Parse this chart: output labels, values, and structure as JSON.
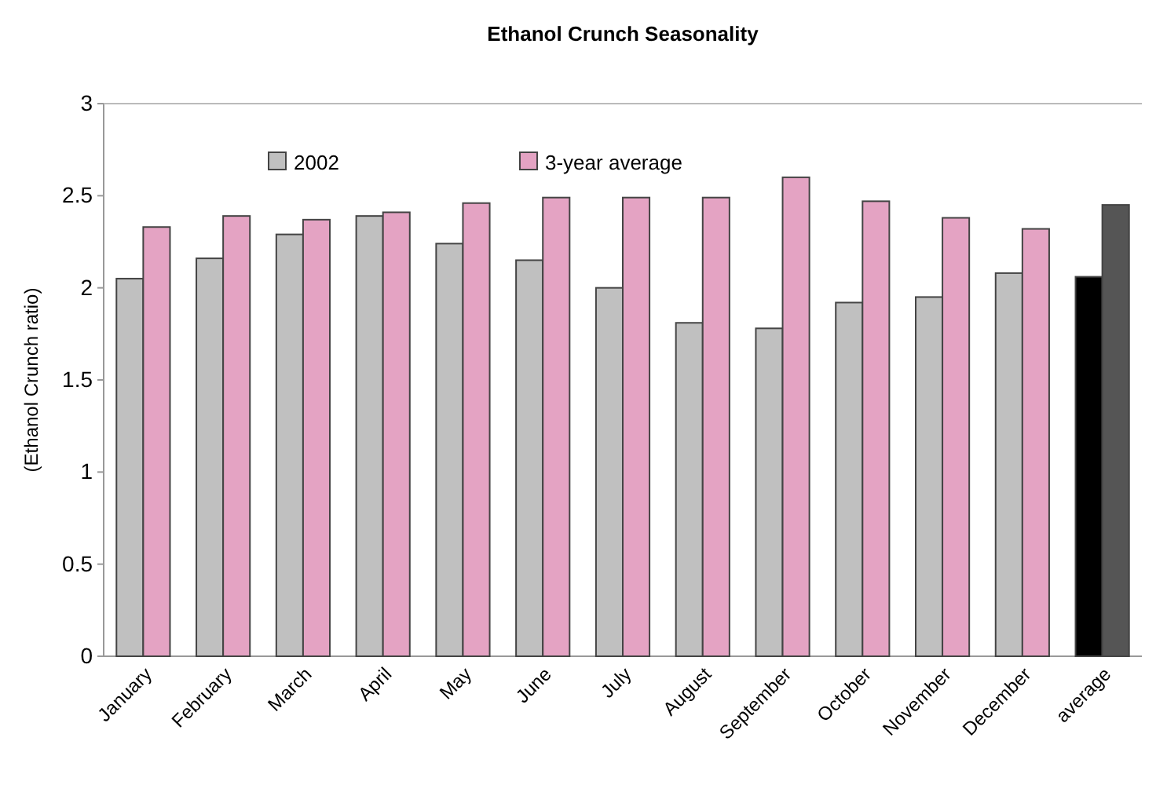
{
  "chart_data": {
    "type": "bar",
    "title": "Ethanol Crunch Seasonality",
    "ylabel": "(Ethanol Crunch ratio)",
    "categories": [
      "January",
      "February",
      "March",
      "April",
      "May",
      "June",
      "July",
      "August",
      "September",
      "October",
      "November",
      "December",
      "average"
    ],
    "series": [
      {
        "name": "2002",
        "color": "#c0c0c0",
        "colors": [
          "#c0c0c0",
          "#c0c0c0",
          "#c0c0c0",
          "#c0c0c0",
          "#c0c0c0",
          "#c0c0c0",
          "#c0c0c0",
          "#c0c0c0",
          "#c0c0c0",
          "#c0c0c0",
          "#c0c0c0",
          "#c0c0c0",
          "#000000"
        ],
        "values": [
          2.05,
          2.16,
          2.29,
          2.39,
          2.24,
          2.15,
          2.0,
          1.81,
          1.78,
          1.92,
          1.95,
          2.08,
          2.06
        ]
      },
      {
        "name": "3-year average",
        "color": "#e4a3c3",
        "colors": [
          "#e4a3c3",
          "#e4a3c3",
          "#e4a3c3",
          "#e4a3c3",
          "#e4a3c3",
          "#e4a3c3",
          "#e4a3c3",
          "#e4a3c3",
          "#e4a3c3",
          "#e4a3c3",
          "#e4a3c3",
          "#e4a3c3",
          "#555555"
        ],
        "values": [
          2.33,
          2.39,
          2.37,
          2.41,
          2.46,
          2.49,
          2.49,
          2.49,
          2.6,
          2.47,
          2.38,
          2.32,
          2.45
        ]
      }
    ],
    "ylim": [
      0,
      3
    ],
    "yticks": [
      0,
      0.5,
      1,
      1.5,
      2,
      2.5,
      3
    ],
    "legend": "top left"
  }
}
